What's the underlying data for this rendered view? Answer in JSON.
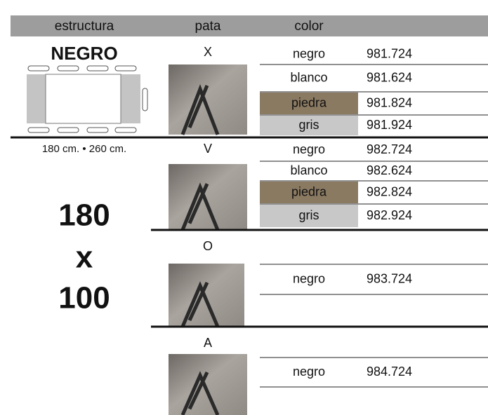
{
  "header": {
    "columns": [
      "estructura",
      "pata",
      "color"
    ]
  },
  "left": {
    "finish": "NEGRO",
    "dimensions": "180 cm. • 260 cm.",
    "size": [
      "180",
      "x",
      "100"
    ]
  },
  "groups": [
    {
      "pata": "X",
      "rows": [
        {
          "color": "negro",
          "code": "981.724"
        },
        {
          "color": "blanco",
          "code": "981.624"
        },
        {
          "color": "piedra",
          "code": "981.824",
          "swatch": "#8b7a62"
        },
        {
          "color": "gris",
          "code": "981.924",
          "swatch": "#c8c8c8"
        }
      ]
    },
    {
      "pata": "V",
      "rows": [
        {
          "color": "negro",
          "code": "982.724"
        },
        {
          "color": "blanco",
          "code": "982.624"
        },
        {
          "color": "piedra",
          "code": "982.824",
          "swatch": "#8b7a62"
        },
        {
          "color": "gris",
          "code": "982.924",
          "swatch": "#c8c8c8"
        }
      ]
    },
    {
      "pata": "O",
      "rows": [
        {
          "color": "negro",
          "code": "983.724"
        }
      ]
    },
    {
      "pata": "A",
      "rows": [
        {
          "color": "negro",
          "code": "984.724"
        }
      ]
    }
  ]
}
